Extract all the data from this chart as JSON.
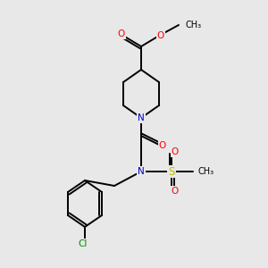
{
  "bg_color": "#e8e8e8",
  "bond_color": "#000000",
  "bond_lw": 1.4,
  "atom_colors": {
    "O": "#ff0000",
    "N": "#0000cc",
    "S": "#bbbb00",
    "Cl": "#008800"
  },
  "font_size_atom": 7.5,
  "fig_size": [
    3.0,
    3.0
  ],
  "dpi": 100,
  "xlim": [
    0,
    300
  ],
  "ylim": [
    0,
    300
  ]
}
